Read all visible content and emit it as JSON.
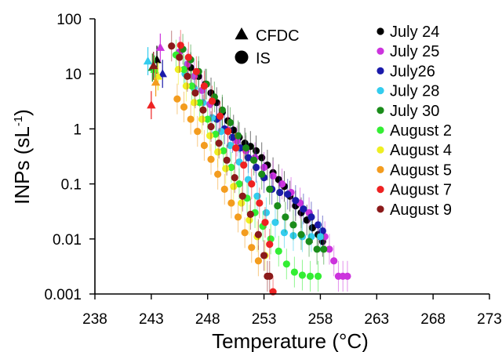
{
  "chart_data": {
    "type": "scatter",
    "xlabel": "Temperature (°C)",
    "ylabel_main": "INPs (sL",
    "ylabel_sup": "-1",
    "ylabel_close": ")",
    "xlim": [
      238,
      273
    ],
    "ylim": [
      0.001,
      100
    ],
    "yscale": "log",
    "x_ticks": [
      238,
      243,
      248,
      253,
      258,
      263,
      268,
      273
    ],
    "x_tick_labels": [
      "238",
      "243",
      "248",
      "253",
      "258",
      "263",
      "268",
      "273"
    ],
    "y_ticks": [
      0.001,
      0.01,
      0.1,
      1,
      10,
      100
    ],
    "y_tick_labels": [
      "0.001",
      "0.01",
      "0.1",
      "1",
      "10",
      "100"
    ],
    "grid": false,
    "legend": "top-right",
    "marker_legend": [
      {
        "label": "CFDC",
        "marker": "triangle"
      },
      {
        "label": "IS",
        "marker": "circle"
      }
    ],
    "series": [
      {
        "name": "July 24",
        "color": "#000000",
        "cfdc": [
          [
            243.5,
            18
          ]
        ],
        "is": [
          [
            246.5,
            13
          ],
          [
            247.2,
            9
          ],
          [
            247.8,
            6.5
          ],
          [
            248.3,
            4.5
          ],
          [
            248.8,
            3
          ],
          [
            249.3,
            2
          ],
          [
            249.8,
            1.4
          ],
          [
            250.3,
            0.95
          ],
          [
            250.8,
            0.7
          ],
          [
            251.3,
            0.55
          ],
          [
            251.8,
            0.48
          ],
          [
            252.3,
            0.4
          ],
          [
            252.8,
            0.3
          ],
          [
            253.3,
            0.22
          ],
          [
            253.8,
            0.16
          ],
          [
            254.3,
            0.12
          ],
          [
            254.8,
            0.09
          ],
          [
            255.3,
            0.06
          ],
          [
            255.8,
            0.04
          ],
          [
            256.3,
            0.03
          ],
          [
            256.8,
            0.022
          ],
          [
            257.3,
            0.016
          ],
          [
            257.8,
            0.012
          ],
          [
            258.2,
            0.009
          ]
        ]
      },
      {
        "name": "July 25",
        "color": "#cc33dd",
        "cfdc": [
          [
            243.8,
            30
          ]
        ],
        "is": [
          [
            245.5,
            25
          ],
          [
            246.2,
            15
          ],
          [
            246.8,
            9
          ],
          [
            247.5,
            5
          ],
          [
            248.2,
            2.8
          ],
          [
            249,
            1.6
          ],
          [
            249.8,
            0.95
          ],
          [
            250.6,
            0.6
          ],
          [
            251.4,
            0.4
          ],
          [
            252.2,
            0.3
          ],
          [
            253,
            0.2
          ],
          [
            253.8,
            0.14
          ],
          [
            254.6,
            0.1
          ],
          [
            255.4,
            0.07
          ],
          [
            256.2,
            0.045
          ],
          [
            257,
            0.03
          ],
          [
            257.8,
            0.018
          ],
          [
            258.4,
            0.011
          ],
          [
            258.8,
            0.0065
          ],
          [
            259.2,
            0.004
          ],
          [
            259.6,
            0.0021
          ],
          [
            260,
            0.0021
          ],
          [
            260.4,
            0.0021
          ]
        ]
      },
      {
        "name": "July26",
        "color": "#1a1aaa",
        "cfdc": [
          [
            244.0,
            10
          ]
        ],
        "is": [
          [
            248.8,
            1.5
          ],
          [
            249.5,
            1.0
          ],
          [
            250.2,
            0.7
          ],
          [
            250.9,
            0.45
          ],
          [
            251.6,
            0.3
          ],
          [
            252.3,
            0.2
          ],
          [
            253,
            0.13
          ],
          [
            253.7,
            0.08
          ],
          [
            254.4,
            0.07
          ],
          [
            255.1,
            0.065
          ],
          [
            255.8,
            0.05
          ],
          [
            256.5,
            0.035
          ],
          [
            257.2,
            0.025
          ],
          [
            257.8,
            0.018
          ],
          [
            258.2,
            0.014
          ]
        ]
      },
      {
        "name": "July 28",
        "color": "#33ccee",
        "cfdc": [
          [
            242.7,
            17
          ]
        ],
        "is": [
          [
            246,
            10
          ],
          [
            246.8,
            5.5
          ],
          [
            247.6,
            3
          ],
          [
            248.4,
            1.6
          ],
          [
            249.2,
            0.9
          ],
          [
            250,
            0.5
          ],
          [
            250.8,
            0.25
          ],
          [
            251.6,
            0.12
          ],
          [
            252.4,
            0.06
          ],
          [
            253.2,
            0.03
          ],
          [
            254,
            0.02
          ],
          [
            254.8,
            0.013
          ],
          [
            255.6,
            0.0115
          ],
          [
            256.4,
            0.011
          ],
          [
            257.2,
            0.011
          ],
          [
            258,
            0.011
          ]
        ]
      },
      {
        "name": "July 30",
        "color": "#1a8c1a",
        "cfdc": [
          [
            243.1,
            13
          ]
        ],
        "is": [
          [
            245.8,
            28
          ],
          [
            246.5,
            18
          ],
          [
            247.2,
            11
          ],
          [
            247.9,
            6.5
          ],
          [
            248.6,
            3.8
          ],
          [
            249.3,
            2.2
          ],
          [
            250,
            1.3
          ],
          [
            250.7,
            0.75
          ],
          [
            251.4,
            0.45
          ],
          [
            252.1,
            0.27
          ],
          [
            252.8,
            0.15
          ],
          [
            253.5,
            0.08
          ],
          [
            254.2,
            0.04
          ],
          [
            254.9,
            0.025
          ],
          [
            255.6,
            0.018
          ],
          [
            256.3,
            0.012
          ],
          [
            257,
            0.009
          ],
          [
            257.7,
            0.0065
          ],
          [
            258.3,
            0.0065
          ]
        ]
      },
      {
        "name": "August 2",
        "color": "#33ee33",
        "cfdc": [
          [
            243.3,
            12
          ]
        ],
        "is": [
          [
            245.2,
            22
          ],
          [
            245.9,
            12
          ],
          [
            246.6,
            6
          ],
          [
            247.3,
            3
          ],
          [
            248,
            1.5
          ],
          [
            248.7,
            0.8
          ],
          [
            249.4,
            0.4
          ],
          [
            250.1,
            0.2
          ],
          [
            250.8,
            0.1
          ],
          [
            251.5,
            0.055
          ],
          [
            252.2,
            0.03
          ],
          [
            252.9,
            0.017
          ],
          [
            253.6,
            0.01
          ],
          [
            254.3,
            0.006
          ],
          [
            255,
            0.0035
          ],
          [
            255.7,
            0.0025
          ],
          [
            256.4,
            0.0022
          ],
          [
            257.1,
            0.0021
          ],
          [
            257.8,
            0.0021
          ]
        ]
      },
      {
        "name": "August 4",
        "color": "#eeee22",
        "cfdc": [
          [
            243.6,
            9
          ]
        ],
        "is": [
          [
            245.4,
            12
          ],
          [
            246.1,
            6
          ],
          [
            246.8,
            3
          ],
          [
            247.5,
            1.5
          ],
          [
            248.2,
            0.75
          ],
          [
            248.9,
            0.38
          ],
          [
            249.6,
            0.19
          ],
          [
            250.3,
            0.09
          ],
          [
            251,
            0.045
          ],
          [
            251.7,
            0.022
          ],
          [
            252.4,
            0.011
          ],
          [
            253.1,
            0.005
          ]
        ]
      },
      {
        "name": "August 5",
        "color": "#f39c1e",
        "cfdc": [
          [
            243.4,
            7
          ]
        ],
        "is": [
          [
            245.3,
            3.5
          ],
          [
            245.9,
            2.5
          ],
          [
            246.5,
            1.5
          ],
          [
            247.1,
            0.9
          ],
          [
            247.7,
            0.5
          ],
          [
            248.3,
            0.28
          ],
          [
            248.9,
            0.15
          ],
          [
            249.5,
            0.08
          ],
          [
            250.1,
            0.045
          ],
          [
            250.7,
            0.025
          ],
          [
            251.3,
            0.013
          ],
          [
            251.9,
            0.007
          ],
          [
            252.5,
            0.004
          ]
        ]
      },
      {
        "name": "August 7",
        "color": "#ee2222",
        "cfdc": [
          [
            243.0,
            2.7
          ]
        ],
        "is": [
          [
            245.6,
            33
          ],
          [
            246.3,
            20
          ],
          [
            247,
            11
          ],
          [
            247.7,
            6
          ],
          [
            248.4,
            3.2
          ],
          [
            249.1,
            1.7
          ],
          [
            249.8,
            0.9
          ],
          [
            250.5,
            0.45
          ],
          [
            251.2,
            0.22
          ],
          [
            251.9,
            0.1
          ],
          [
            252.6,
            0.045
          ],
          [
            253.1,
            0.02
          ],
          [
            253.5,
            0.008
          ],
          [
            253.8,
            0.0011
          ]
        ]
      },
      {
        "name": "August 9",
        "color": "#8b1a1a",
        "cfdc": [
          [
            243.2,
            14
          ]
        ],
        "is": [
          [
            244.8,
            32
          ],
          [
            245.5,
            20
          ],
          [
            246.2,
            9
          ],
          [
            246.9,
            4.5
          ],
          [
            247.6,
            2.2
          ],
          [
            248.3,
            1.1
          ],
          [
            249,
            0.55
          ],
          [
            249.7,
            0.27
          ],
          [
            250.4,
            0.13
          ],
          [
            251.1,
            0.06
          ],
          [
            251.8,
            0.028
          ],
          [
            252.5,
            0.012
          ],
          [
            253,
            0.005
          ],
          [
            253.3,
            0.0021
          ],
          [
            253.5,
            0.0021
          ]
        ]
      }
    ]
  }
}
